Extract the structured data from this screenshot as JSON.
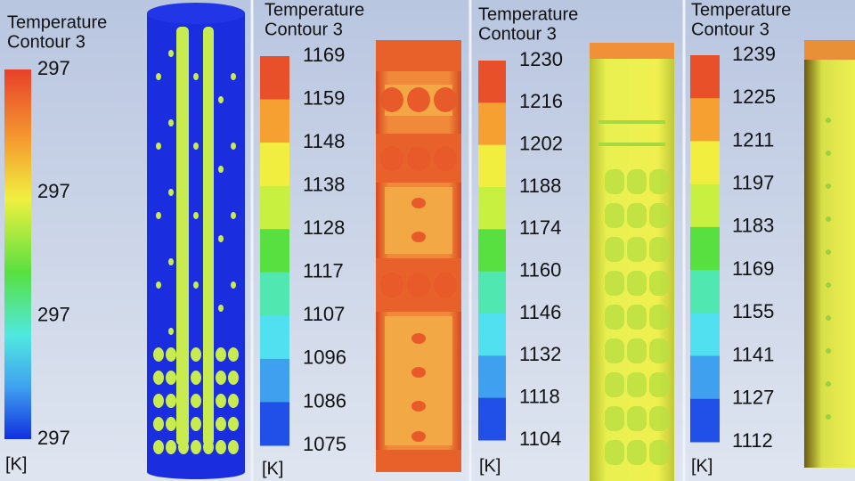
{
  "panels": [
    {
      "title": "Temperature",
      "subtitle": "Contour 3",
      "labels": [
        "297",
        "297",
        "297",
        "297"
      ],
      "unit": "[K]"
    },
    {
      "title": "Temperature",
      "subtitle": "Contour 3",
      "labels": [
        "1169",
        "1159",
        "1148",
        "1138",
        "1128",
        "1117",
        "1107",
        "1096",
        "1086",
        "1075"
      ],
      "unit": "[K]"
    },
    {
      "title": "Temperature",
      "subtitle": "Contour 3",
      "labels": [
        "1230",
        "1216",
        "1202",
        "1188",
        "1174",
        "1160",
        "1146",
        "1132",
        "1118",
        "1104"
      ],
      "unit": "[K]"
    },
    {
      "title": "Temperature",
      "subtitle": "Contour 3",
      "labels": [
        "1239",
        "1225",
        "1211",
        "1197",
        "1183",
        "1169",
        "1155",
        "1141",
        "1127",
        "1112"
      ],
      "unit": "[K]"
    }
  ]
}
